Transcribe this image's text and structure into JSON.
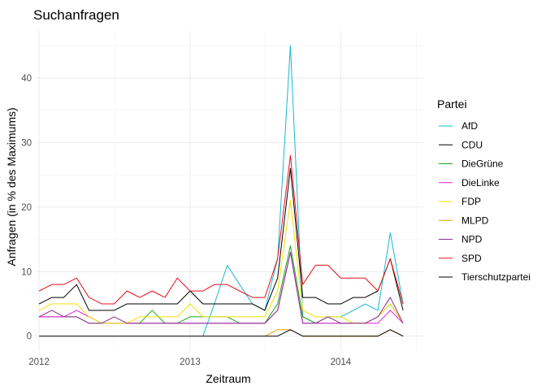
{
  "chart_data": {
    "type": "line",
    "title": "Suchanfragen",
    "xlabel": "Zeitraum",
    "ylabel": "Anfragen (in % des Maximums)",
    "xlim": [
      "2011-12-24",
      "2014-07-22"
    ],
    "ylim": [
      -2.3,
      47.3
    ],
    "x_ticks": [
      {
        "date": "2012-01-01",
        "label": "2012"
      },
      {
        "date": "2013-01-01",
        "label": "2013"
      },
      {
        "date": "2014-01-01",
        "label": "2014"
      }
    ],
    "y_ticks": [
      0,
      10,
      20,
      30,
      40
    ],
    "legend_title": "Partei",
    "legend_position": "right",
    "grid": true,
    "x": [
      "2012-01-01",
      "2012-02-01",
      "2012-03-01",
      "2012-04-01",
      "2012-05-01",
      "2012-06-01",
      "2012-07-01",
      "2012-08-01",
      "2012-09-01",
      "2012-10-01",
      "2012-11-01",
      "2012-12-01",
      "2013-01-01",
      "2013-02-01",
      "2013-03-01",
      "2013-04-01",
      "2013-05-01",
      "2013-06-01",
      "2013-07-01",
      "2013-08-01",
      "2013-09-01",
      "2013-10-01",
      "2013-11-01",
      "2013-12-01",
      "2014-01-01",
      "2014-02-01",
      "2014-03-01",
      "2014-04-01",
      "2014-05-01",
      "2014-06-01"
    ],
    "series": [
      {
        "name": "AfD",
        "color": "#16b9d4",
        "values": [
          null,
          null,
          null,
          null,
          null,
          null,
          null,
          null,
          null,
          null,
          null,
          null,
          null,
          0,
          5,
          11,
          8,
          5,
          4,
          12,
          45,
          3,
          2,
          3,
          3,
          4,
          5,
          4,
          16,
          5
        ]
      },
      {
        "name": "CDU",
        "color": "#000000",
        "values": [
          5,
          6,
          6,
          8,
          4,
          4,
          4,
          5,
          5,
          5,
          5,
          5,
          7,
          5,
          5,
          5,
          5,
          5,
          4,
          9,
          26,
          6,
          6,
          5,
          5,
          6,
          6,
          7,
          12,
          4
        ]
      },
      {
        "name": "DieGrüne",
        "color": "#18a818",
        "values": [
          3,
          3,
          3,
          3,
          2,
          2,
          2,
          2,
          2,
          4,
          2,
          2,
          3,
          3,
          3,
          3,
          2,
          2,
          2,
          5,
          14,
          3,
          2,
          2,
          2,
          2,
          2,
          3,
          5,
          2
        ]
      },
      {
        "name": "DieLinke",
        "color": "#e61ae6",
        "values": [
          3,
          3,
          3,
          4,
          3,
          2,
          2,
          2,
          2,
          2,
          2,
          2,
          2,
          2,
          2,
          2,
          2,
          2,
          2,
          4,
          13,
          2,
          2,
          2,
          2,
          2,
          2,
          2,
          4,
          2
        ]
      },
      {
        "name": "FDP",
        "color": "#f2e000",
        "values": [
          4,
          5,
          5,
          5,
          3,
          2,
          2,
          2,
          3,
          3,
          3,
          3,
          5,
          3,
          3,
          3,
          3,
          3,
          3,
          7,
          21,
          4,
          3,
          3,
          3,
          2,
          2,
          3,
          5,
          2
        ]
      },
      {
        "name": "MLPD",
        "color": "#f29800",
        "values": [
          null,
          null,
          null,
          null,
          null,
          null,
          null,
          null,
          null,
          null,
          null,
          null,
          null,
          null,
          null,
          null,
          null,
          null,
          0,
          1,
          1,
          0,
          0,
          0,
          0,
          0,
          0,
          0,
          1,
          0
        ]
      },
      {
        "name": "NPD",
        "color": "#8e2a8e",
        "values": [
          3,
          4,
          3,
          3,
          2,
          2,
          3,
          2,
          2,
          2,
          2,
          2,
          2,
          2,
          2,
          2,
          2,
          2,
          2,
          4,
          13,
          2,
          2,
          3,
          2,
          2,
          2,
          3,
          6,
          2
        ]
      },
      {
        "name": "SPD",
        "color": "#e8101a",
        "values": [
          7,
          8,
          8,
          9,
          6,
          5,
          5,
          7,
          6,
          7,
          6,
          9,
          7,
          7,
          8,
          8,
          7,
          6,
          6,
          12,
          28,
          8,
          11,
          11,
          9,
          9,
          9,
          7,
          12,
          5
        ]
      },
      {
        "name": "Tierschutzpartei",
        "color": "#000000",
        "values": [
          0,
          0,
          0,
          0,
          0,
          0,
          0,
          0,
          0,
          0,
          0,
          0,
          0,
          0,
          0,
          0,
          0,
          0,
          0,
          0,
          1,
          0,
          0,
          0,
          0,
          0,
          0,
          0,
          1,
          0
        ]
      }
    ]
  }
}
